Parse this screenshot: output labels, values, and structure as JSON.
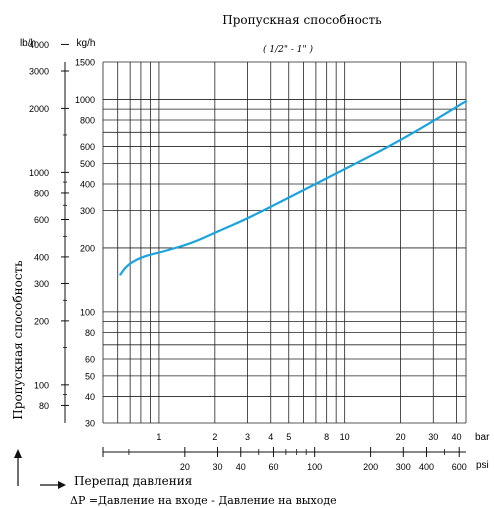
{
  "chart_data": {
    "type": "line",
    "title": "Пропускная способность",
    "subtitle": "( 1/2\" - 1\" )",
    "ylabel": "Пропускная способность",
    "xlabel": "Перепад давления",
    "xnote": "ΔP =Давление на входе - Давление на выходе",
    "x_unit_primary": "bar",
    "x_unit_secondary": "psi",
    "y_unit_left": "lb/h",
    "y_unit_right": "kg/h",
    "x_scale": "log",
    "y_scale": "log",
    "xlim_bar": [
      0.5,
      45
    ],
    "ylim_kgh": [
      30,
      1500
    ],
    "grid": true,
    "x_ticks_bar": [
      "1",
      "2",
      "3",
      "4",
      "5",
      "8",
      "10",
      "20",
      "30",
      "40"
    ],
    "x_ticks_psi": [
      "20",
      "30",
      "40",
      "60",
      "100",
      "200",
      "300",
      "400",
      "600"
    ],
    "y_ticks_kgh": [
      "30",
      "40",
      "50",
      "60",
      "80",
      "100",
      "200",
      "300",
      "400",
      "500",
      "600",
      "800",
      "1000",
      "1500"
    ],
    "y_ticks_lbh": [
      "80",
      "100",
      "200",
      "300",
      "400",
      "600",
      "800",
      "1000",
      "2000",
      "3000",
      "4000"
    ],
    "series": [
      {
        "color": "#1aa3dd",
        "points": [
          {
            "x": 0.62,
            "y": 150
          },
          {
            "x": 0.66,
            "y": 162
          },
          {
            "x": 0.72,
            "y": 172
          },
          {
            "x": 0.8,
            "y": 180
          },
          {
            "x": 0.9,
            "y": 186
          },
          {
            "x": 1.0,
            "y": 190
          },
          {
            "x": 1.5,
            "y": 210
          },
          {
            "x": 2,
            "y": 236
          },
          {
            "x": 3,
            "y": 275
          },
          {
            "x": 5,
            "y": 345
          },
          {
            "x": 10,
            "y": 470
          },
          {
            "x": 20,
            "y": 640
          },
          {
            "x": 45,
            "y": 980
          }
        ]
      }
    ]
  }
}
